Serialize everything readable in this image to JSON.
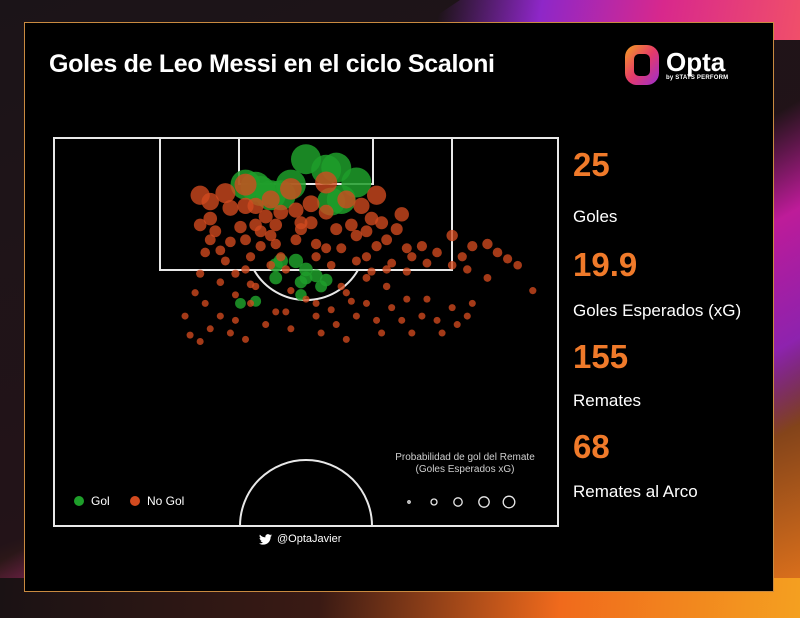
{
  "title": "Goles de Leo Messi en el ciclo Scaloni",
  "brand": {
    "name": "Opta",
    "sub": "by STATS PERFORM",
    "gradient": [
      "#f4a020",
      "#e63a6a",
      "#9a2fd0"
    ]
  },
  "stats": [
    {
      "value": "25",
      "label": "Goles"
    },
    {
      "value": "19.9",
      "label": "Goles Esperados (xG)"
    },
    {
      "value": "155",
      "label": "Remates"
    },
    {
      "value": "68",
      "label": "Remates al Arco"
    }
  ],
  "legend": {
    "goal": "Gol",
    "no_goal": "No Gol"
  },
  "size_legend": {
    "line1": "Probabilidad de gol del Remate",
    "line2": "(Goles Esperados xG)"
  },
  "handle": "@OptaJavier",
  "colors": {
    "goal": "#1e9e2a",
    "no_goal": "#d24a1f",
    "accent": "#f07a2a"
  },
  "chart_data": {
    "type": "scatter",
    "title": "Goles de Leo Messi en el ciclo Scaloni",
    "series": [
      {
        "name": "Gol",
        "color": "#1e9e2a",
        "points": [
          [
            50,
            0.1
          ],
          [
            54,
            0.15
          ],
          [
            56,
            0.14
          ],
          [
            55,
            0.3
          ],
          [
            41,
            0.25
          ],
          [
            47,
            0.22
          ],
          [
            60,
            0.21
          ],
          [
            40,
            0.23
          ],
          [
            57,
            0.29
          ],
          [
            45,
            0.27
          ],
          [
            38,
            0.22
          ],
          [
            43,
            0.27
          ],
          [
            44,
            0.6
          ],
          [
            48,
            0.58
          ],
          [
            37,
            0.78
          ],
          [
            40,
            0.77
          ],
          [
            50,
            0.62
          ],
          [
            52,
            0.65
          ],
          [
            44,
            0.66
          ],
          [
            49,
            0.74
          ],
          [
            49,
            0.68
          ],
          [
            50,
            0.66
          ],
          [
            54,
            0.67
          ],
          [
            53,
            0.7
          ],
          [
            45,
            0.58
          ]
        ]
      },
      {
        "name": "No Gol",
        "color": "#d24a1f",
        "points": [
          [
            29,
            0.27
          ],
          [
            29,
            0.41
          ],
          [
            31,
            0.48
          ],
          [
            29,
            0.64
          ],
          [
            30,
            0.78
          ],
          [
            31,
            0.38
          ],
          [
            31,
            0.3
          ],
          [
            34,
            0.26
          ],
          [
            33,
            0.53
          ],
          [
            33,
            0.68
          ],
          [
            35,
            0.33
          ],
          [
            37,
            0.42
          ],
          [
            36,
            0.74
          ],
          [
            36,
            0.86
          ],
          [
            38,
            0.22
          ],
          [
            38,
            0.48
          ],
          [
            38,
            0.62
          ],
          [
            39,
            0.78
          ],
          [
            39,
            0.69
          ],
          [
            40,
            0.32
          ],
          [
            40,
            0.41
          ],
          [
            41,
            0.51
          ],
          [
            42,
            0.37
          ],
          [
            43,
            0.46
          ],
          [
            43,
            0.29
          ],
          [
            45,
            0.35
          ],
          [
            45,
            0.56
          ],
          [
            46,
            0.82
          ],
          [
            47,
            0.24
          ],
          [
            48,
            0.34
          ],
          [
            49,
            0.4
          ],
          [
            51,
            0.31
          ],
          [
            52,
            0.5
          ],
          [
            52,
            0.56
          ],
          [
            54,
            0.21
          ],
          [
            54,
            0.35
          ],
          [
            55,
            0.6
          ],
          [
            56,
            0.43
          ],
          [
            57,
            0.52
          ],
          [
            58,
            0.29
          ],
          [
            58,
            0.73
          ],
          [
            59,
            0.41
          ],
          [
            60,
            0.46
          ],
          [
            61,
            0.32
          ],
          [
            62,
            0.56
          ],
          [
            62,
            0.66
          ],
          [
            63,
            0.38
          ],
          [
            64,
            0.51
          ],
          [
            64,
            0.27
          ],
          [
            66,
            0.48
          ],
          [
            66,
            0.7
          ],
          [
            67,
            0.59
          ],
          [
            68,
            0.43
          ],
          [
            69,
            0.36
          ],
          [
            71,
            0.56
          ],
          [
            70,
            0.63
          ],
          [
            73,
            0.51
          ],
          [
            74,
            0.59
          ],
          [
            76,
            0.54
          ],
          [
            79,
            0.46
          ],
          [
            81,
            0.56
          ],
          [
            82,
            0.62
          ],
          [
            83,
            0.51
          ],
          [
            86,
            0.5
          ],
          [
            88,
            0.54
          ],
          [
            90,
            0.57
          ],
          [
            92,
            0.6
          ],
          [
            95,
            0.72
          ],
          [
            86,
            0.66
          ],
          [
            28,
            0.73
          ],
          [
            33,
            0.84
          ],
          [
            35,
            0.92
          ],
          [
            38,
            0.95
          ],
          [
            42,
            0.88
          ],
          [
            44,
            0.82
          ],
          [
            47,
            0.72
          ],
          [
            47,
            0.9
          ],
          [
            50,
            0.76
          ],
          [
            52,
            0.84
          ],
          [
            53,
            0.92
          ],
          [
            55,
            0.81
          ],
          [
            56,
            0.88
          ],
          [
            58,
            0.95
          ],
          [
            57,
            0.7
          ],
          [
            59,
            0.77
          ],
          [
            60,
            0.84
          ],
          [
            62,
            0.78
          ],
          [
            64,
            0.86
          ],
          [
            65,
            0.92
          ],
          [
            67,
            0.8
          ],
          [
            69,
            0.86
          ],
          [
            70,
            0.76
          ],
          [
            71,
            0.92
          ],
          [
            73,
            0.84
          ],
          [
            74,
            0.76
          ],
          [
            76,
            0.86
          ],
          [
            77,
            0.92
          ],
          [
            79,
            0.8
          ],
          [
            80,
            0.88
          ],
          [
            82,
            0.84
          ],
          [
            83,
            0.78
          ],
          [
            26,
            0.84
          ],
          [
            27,
            0.93
          ],
          [
            31,
            0.9
          ],
          [
            29,
            0.96
          ],
          [
            40,
            0.7
          ],
          [
            36,
            0.64
          ],
          [
            48,
            0.48
          ],
          [
            44,
            0.41
          ],
          [
            41,
            0.44
          ],
          [
            39,
            0.56
          ],
          [
            34,
            0.58
          ],
          [
            38,
            0.32
          ],
          [
            32,
            0.44
          ],
          [
            30,
            0.54
          ],
          [
            35,
            0.49
          ],
          [
            44,
            0.5
          ],
          [
            49,
            0.43
          ],
          [
            51,
            0.4
          ],
          [
            46,
            0.62
          ],
          [
            43,
            0.6
          ],
          [
            54,
            0.52
          ],
          [
            62,
            0.44
          ],
          [
            65,
            0.4
          ],
          [
            60,
            0.58
          ],
          [
            66,
            0.62
          ],
          [
            52,
            0.78
          ],
          [
            70,
            0.52
          ],
          [
            63,
            0.63
          ],
          [
            79,
            0.6
          ]
        ]
      }
    ]
  }
}
